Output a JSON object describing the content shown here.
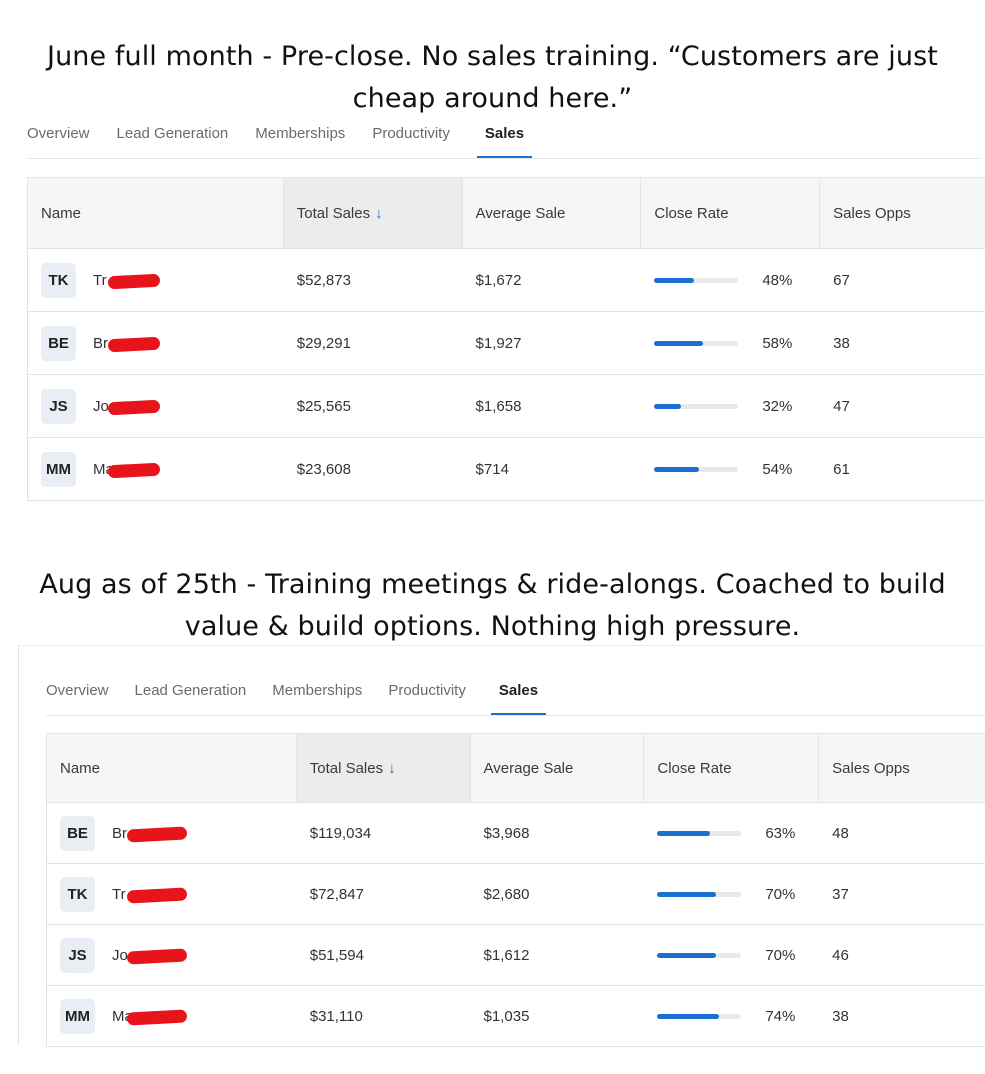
{
  "sections": [
    {
      "caption_line1": "June full month - Pre-close. No sales training. “Customers are just",
      "caption_line2": "cheap around here.”",
      "tabs": [
        "Overview",
        "Lead Generation",
        "Memberships",
        "Productivity",
        "Sales"
      ],
      "active_tab": "Sales",
      "columns": [
        "Name",
        "Total Sales",
        "Average Sale",
        "Close Rate",
        "Sales Opps"
      ],
      "sort_icon": "arrow-down-icon",
      "rows": [
        {
          "initials": "TK",
          "name_visible": "Tr",
          "total_sales": "$52,873",
          "average_sale": "$1,672",
          "close_rate": 0.48,
          "close_rate_label": "48%",
          "sales_opps": "67"
        },
        {
          "initials": "BE",
          "name_visible": "Br",
          "total_sales": "$29,291",
          "average_sale": "$1,927",
          "close_rate": 0.58,
          "close_rate_label": "58%",
          "sales_opps": "38"
        },
        {
          "initials": "JS",
          "name_visible": "Jo",
          "total_sales": "$25,565",
          "average_sale": "$1,658",
          "close_rate": 0.32,
          "close_rate_label": "32%",
          "sales_opps": "47"
        },
        {
          "initials": "MM",
          "name_visible": "Ma",
          "total_sales": "$23,608",
          "average_sale": "$714",
          "close_rate": 0.54,
          "close_rate_label": "54%",
          "sales_opps": "61"
        }
      ]
    },
    {
      "caption_line1": "Aug as of 25th - Training meetings & ride-alongs. Coached to build",
      "caption_line2": "value & build options. Nothing high pressure.",
      "tabs": [
        "Overview",
        "Lead Generation",
        "Memberships",
        "Productivity",
        "Sales"
      ],
      "active_tab": "Sales",
      "columns": [
        "Name",
        "Total Sales",
        "Average Sale",
        "Close Rate",
        "Sales Opps"
      ],
      "sort_icon": "arrow-down-icon",
      "rows": [
        {
          "initials": "BE",
          "name_visible": "Br",
          "total_sales": "$119,034",
          "average_sale": "$3,968",
          "close_rate": 0.63,
          "close_rate_label": "63%",
          "sales_opps": "48"
        },
        {
          "initials": "TK",
          "name_visible": "Tr",
          "total_sales": "$72,847",
          "average_sale": "$2,680",
          "close_rate": 0.7,
          "close_rate_label": "70%",
          "sales_opps": "37"
        },
        {
          "initials": "JS",
          "name_visible": "Jo",
          "total_sales": "$51,594",
          "average_sale": "$1,612",
          "close_rate": 0.7,
          "close_rate_label": "70%",
          "sales_opps": "46"
        },
        {
          "initials": "MM",
          "name_visible": "Ma",
          "total_sales": "$31,110",
          "average_sale": "$1,035",
          "close_rate": 0.74,
          "close_rate_label": "74%",
          "sales_opps": "38"
        }
      ]
    }
  ],
  "colors": {
    "accent": "#1a6fd1",
    "redaction": "#e8141c",
    "header_bg": "#f6f6f6",
    "avatar_bg": "#e8eef3"
  }
}
